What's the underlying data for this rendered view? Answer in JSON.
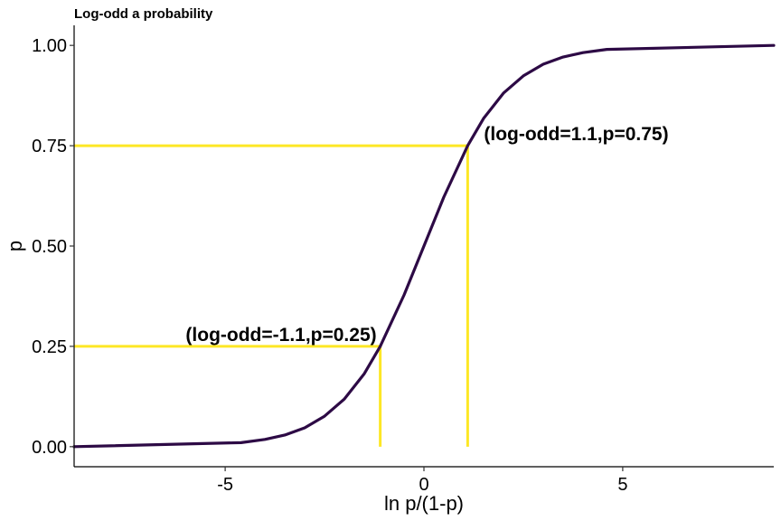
{
  "chart_data": {
    "type": "line",
    "title": "Log-odd a probability",
    "xlabel": "ln p/(1-p)",
    "ylabel": "p",
    "xlim": [
      -8.8,
      8.8
    ],
    "ylim": [
      -0.05,
      1.05
    ],
    "x_ticks": [
      -5,
      0,
      5
    ],
    "x_tick_labels": [
      "-5",
      "0",
      "5"
    ],
    "y_ticks": [
      0,
      0.25,
      0.5,
      0.75,
      1
    ],
    "y_tick_labels": [
      "0.00",
      "0.25",
      "0.50",
      "0.75",
      "1.00"
    ],
    "grid": false,
    "curve_color": "#2d0a45",
    "reference_color": "#fde725",
    "series": [
      {
        "x": [
          -8.8,
          -4.6,
          -4.0,
          -3.5,
          -3.0,
          -2.5,
          -2.0,
          -1.5,
          -1.1,
          -0.5,
          0,
          0.5,
          1.1,
          1.5,
          2.0,
          2.5,
          3.0,
          3.5,
          4.0,
          4.6,
          8.8
        ],
        "y": [
          0.0,
          0.01,
          0.018,
          0.029,
          0.047,
          0.076,
          0.119,
          0.182,
          0.25,
          0.378,
          0.5,
          0.622,
          0.75,
          0.818,
          0.881,
          0.924,
          0.953,
          0.971,
          0.982,
          0.99,
          1.0
        ]
      }
    ],
    "reference_points": [
      {
        "x": -1.1,
        "y": 0.25,
        "label": "(log-odd=-1.1,p=0.25)"
      },
      {
        "x": 1.1,
        "y": 0.75,
        "label": "(log-odd=1.1,p=0.75)"
      }
    ]
  }
}
